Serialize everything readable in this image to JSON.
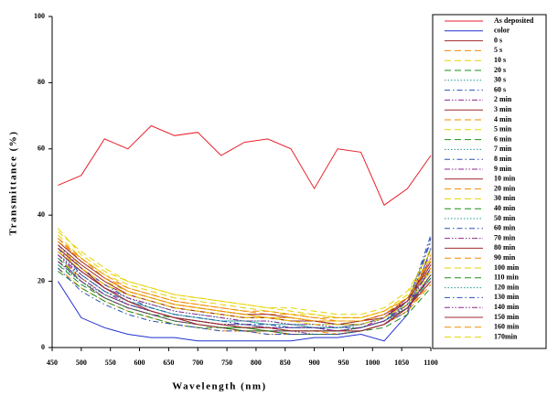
{
  "chart_data": {
    "type": "line",
    "x_label": "Wavelength (nm)",
    "y_label": "Transmittance (%)",
    "xlim": [
      450,
      1100
    ],
    "xticks": [
      450,
      500,
      550,
      600,
      650,
      700,
      750,
      800,
      850,
      900,
      950,
      1000,
      1050,
      1100
    ],
    "ylim": [
      0,
      100
    ],
    "yticks": [
      0,
      20,
      40,
      60,
      80,
      100
    ],
    "x": [
      460,
      500,
      540,
      580,
      620,
      660,
      700,
      740,
      780,
      820,
      860,
      900,
      940,
      980,
      1020,
      1060,
      1100
    ],
    "series": [
      {
        "name": "As deposited",
        "color": "#e8202a",
        "dash": "solid",
        "values": [
          49,
          52,
          63,
          60,
          67,
          64,
          65,
          58,
          62,
          63,
          60,
          48,
          60,
          59,
          43,
          48,
          58
        ]
      },
      {
        "name": "color",
        "color": "#2030d0",
        "dash": "solid",
        "values": [
          20,
          9,
          6,
          4,
          3,
          3,
          2,
          2,
          2,
          2,
          2,
          3,
          3,
          4,
          2,
          10,
          30
        ]
      },
      {
        "name": "0 s",
        "color": "#a0282d",
        "dash": "solid",
        "values": [
          30,
          24,
          19,
          16,
          14,
          12,
          11,
          10,
          9,
          9,
          8,
          8,
          7,
          7,
          9,
          14,
          26
        ]
      },
      {
        "name": "5 s",
        "color": "#f08c00",
        "dash": "dashed",
        "values": [
          33,
          26,
          21,
          18,
          16,
          14,
          13,
          12,
          11,
          10,
          10,
          9,
          8,
          8,
          10,
          15,
          28
        ]
      },
      {
        "name": "10 s",
        "color": "#e6d200",
        "dash": "dashed",
        "values": [
          36,
          28,
          23,
          20,
          18,
          16,
          15,
          14,
          13,
          12,
          11,
          10,
          9,
          9,
          11,
          16,
          30
        ]
      },
      {
        "name": "20 s",
        "color": "#1e8c1e",
        "dash": "dashed",
        "values": [
          26,
          20,
          15,
          12,
          10,
          9,
          8,
          7,
          6,
          6,
          5,
          5,
          5,
          6,
          8,
          12,
          22
        ]
      },
      {
        "name": "30 s",
        "color": "#1e9696",
        "dash": "dotted",
        "values": [
          29,
          23,
          18,
          15,
          13,
          11,
          10,
          9,
          8,
          8,
          7,
          7,
          7,
          7,
          9,
          13,
          24
        ]
      },
      {
        "name": "60 s",
        "color": "#2850b4",
        "dash": "dashdot",
        "values": [
          31,
          24,
          19,
          15,
          12,
          10,
          9,
          8,
          7,
          7,
          6,
          6,
          5,
          6,
          8,
          13,
          34
        ]
      },
      {
        "name": "2 min",
        "color": "#8c288c",
        "dash": "dashdotdot",
        "values": [
          28,
          22,
          17,
          13,
          11,
          9,
          8,
          7,
          6,
          6,
          5,
          5,
          5,
          6,
          9,
          15,
          26
        ]
      },
      {
        "name": "3 min",
        "color": "#a0282d",
        "dash": "solid",
        "values": [
          32,
          26,
          21,
          17,
          15,
          13,
          12,
          11,
          10,
          10,
          9,
          8,
          8,
          8,
          9,
          14,
          27
        ]
      },
      {
        "name": "4 min",
        "color": "#f08c00",
        "dash": "dashed",
        "values": [
          27,
          21,
          16,
          13,
          11,
          9,
          8,
          7,
          6,
          5,
          5,
          5,
          4,
          5,
          7,
          11,
          20
        ]
      },
      {
        "name": "5 min",
        "color": "#e6d200",
        "dash": "dashed",
        "values": [
          30,
          25,
          20,
          17,
          15,
          13,
          12,
          11,
          10,
          9,
          9,
          8,
          8,
          8,
          10,
          14,
          23
        ]
      },
      {
        "name": "6 min",
        "color": "#1e8c1e",
        "dash": "dashed",
        "values": [
          25,
          19,
          15,
          12,
          10,
          8,
          7,
          6,
          6,
          5,
          5,
          5,
          5,
          5,
          7,
          12,
          21
        ]
      },
      {
        "name": "7 min",
        "color": "#1e9696",
        "dash": "dotted",
        "values": [
          28,
          23,
          18,
          14,
          12,
          10,
          9,
          8,
          8,
          7,
          7,
          6,
          6,
          7,
          9,
          13,
          25
        ]
      },
      {
        "name": "8 min",
        "color": "#2850b4",
        "dash": "dashdot",
        "values": [
          26,
          21,
          16,
          13,
          11,
          9,
          8,
          7,
          7,
          6,
          6,
          6,
          5,
          6,
          8,
          12,
          24
        ]
      },
      {
        "name": "9 min",
        "color": "#8c288c",
        "dash": "dashdotdot",
        "values": [
          29,
          23,
          18,
          15,
          13,
          11,
          10,
          9,
          8,
          8,
          7,
          7,
          6,
          7,
          9,
          15,
          23
        ]
      },
      {
        "name": "10 min",
        "color": "#a0282d",
        "dash": "solid",
        "values": [
          31,
          25,
          20,
          16,
          14,
          12,
          11,
          10,
          9,
          9,
          8,
          8,
          7,
          8,
          10,
          14,
          25
        ]
      },
      {
        "name": "20 min",
        "color": "#f08c00",
        "dash": "dashed",
        "values": [
          24,
          18,
          14,
          11,
          9,
          7,
          6,
          5,
          5,
          4,
          4,
          4,
          4,
          5,
          7,
          11,
          19
        ]
      },
      {
        "name": "30 min",
        "color": "#e6d200",
        "dash": "dashed",
        "values": [
          34,
          27,
          22,
          19,
          17,
          15,
          14,
          13,
          12,
          11,
          10,
          10,
          9,
          9,
          11,
          15,
          27
        ]
      },
      {
        "name": "40 min",
        "color": "#1e8c1e",
        "dash": "dashed",
        "values": [
          27,
          20,
          15,
          12,
          10,
          8,
          7,
          6,
          6,
          5,
          5,
          5,
          5,
          6,
          8,
          12,
          22
        ]
      },
      {
        "name": "50 min",
        "color": "#1e9696",
        "dash": "dotted",
        "values": [
          25,
          20,
          16,
          13,
          11,
          9,
          8,
          7,
          7,
          6,
          6,
          6,
          6,
          6,
          8,
          12,
          21
        ]
      },
      {
        "name": "60 min",
        "color": "#2850b4",
        "dash": "dashdot",
        "values": [
          30,
          22,
          17,
          14,
          12,
          10,
          9,
          8,
          7,
          7,
          6,
          6,
          6,
          6,
          8,
          14,
          32
        ]
      },
      {
        "name": "70 min",
        "color": "#8c288c",
        "dash": "dashdotdot",
        "values": [
          26,
          20,
          15,
          12,
          10,
          8,
          7,
          6,
          5,
          5,
          5,
          4,
          4,
          5,
          7,
          13,
          24
        ]
      },
      {
        "name": "80 min",
        "color": "#a0282d",
        "dash": "solid",
        "values": [
          29,
          23,
          18,
          14,
          11,
          9,
          7,
          6,
          5,
          5,
          4,
          4,
          4,
          5,
          7,
          12,
          22
        ]
      },
      {
        "name": "90 min",
        "color": "#f08c00",
        "dash": "dashed",
        "values": [
          32,
          27,
          22,
          18,
          16,
          14,
          13,
          12,
          11,
          11,
          10,
          9,
          9,
          9,
          11,
          15,
          26
        ]
      },
      {
        "name": "100 min",
        "color": "#e6d200",
        "dash": "dashed",
        "values": [
          35,
          29,
          24,
          20,
          18,
          16,
          15,
          14,
          13,
          12,
          12,
          11,
          10,
          10,
          12,
          17,
          29
        ]
      },
      {
        "name": "110 min",
        "color": "#1e8c1e",
        "dash": "dashed",
        "values": [
          23,
          18,
          14,
          11,
          9,
          7,
          6,
          6,
          5,
          5,
          4,
          4,
          4,
          5,
          6,
          10,
          18
        ]
      },
      {
        "name": "120 min",
        "color": "#1e9696",
        "dash": "dotted",
        "values": [
          27,
          22,
          17,
          14,
          12,
          10,
          9,
          8,
          8,
          7,
          7,
          6,
          6,
          7,
          9,
          13,
          22
        ]
      },
      {
        "name": "130 min",
        "color": "#2850b4",
        "dash": "dashdot",
        "values": [
          24,
          17,
          13,
          10,
          8,
          7,
          6,
          5,
          5,
          4,
          4,
          4,
          4,
          5,
          7,
          11,
          33
        ]
      },
      {
        "name": "140 min",
        "color": "#8c288c",
        "dash": "dashdotdot",
        "values": [
          28,
          21,
          16,
          13,
          11,
          9,
          8,
          7,
          7,
          6,
          6,
          6,
          5,
          6,
          8,
          13,
          21
        ]
      },
      {
        "name": "150 min",
        "color": "#a0282d",
        "dash": "solid",
        "values": [
          30,
          24,
          18,
          14,
          11,
          9,
          8,
          7,
          6,
          6,
          5,
          5,
          5,
          5,
          7,
          12,
          20
        ]
      },
      {
        "name": "160 min",
        "color": "#f08c00",
        "dash": "dashed",
        "values": [
          33,
          27,
          21,
          17,
          15,
          13,
          12,
          11,
          10,
          9,
          9,
          8,
          8,
          8,
          10,
          15,
          24
        ]
      },
      {
        "name": "170min",
        "color": "#e6d200",
        "dash": "dashed",
        "values": [
          29,
          24,
          19,
          16,
          14,
          12,
          11,
          10,
          9,
          9,
          8,
          7,
          7,
          7,
          9,
          13,
          23
        ]
      }
    ]
  }
}
